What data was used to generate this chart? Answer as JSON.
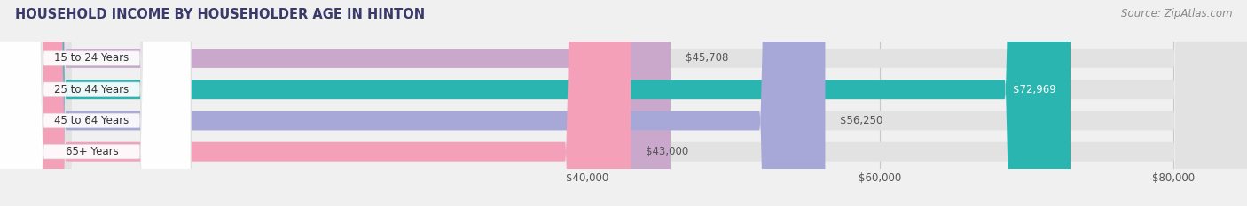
{
  "title": "HOUSEHOLD INCOME BY HOUSEHOLDER AGE IN HINTON",
  "source": "Source: ZipAtlas.com",
  "categories": [
    "15 to 24 Years",
    "25 to 44 Years",
    "45 to 64 Years",
    "65+ Years"
  ],
  "values": [
    45708,
    72969,
    56250,
    43000
  ],
  "bar_colors": [
    "#c9a8cc",
    "#2ab5b0",
    "#a8a8d8",
    "#f4a0b8"
  ],
  "bar_labels": [
    "$45,708",
    "$72,969",
    "$56,250",
    "$43,000"
  ],
  "label_color_dark": "#555555",
  "label_color_light": "#ffffff",
  "label_inside": [
    false,
    true,
    false,
    false
  ],
  "x_min": 0,
  "x_max": 85000,
  "x_ticks": [
    40000,
    60000,
    80000
  ],
  "x_tick_labels": [
    "$40,000",
    "$60,000",
    "$80,000"
  ],
  "background_color": "#f0f0f0",
  "bar_bg_color": "#e2e2e2",
  "bar_height": 0.62,
  "title_fontsize": 10.5,
  "source_fontsize": 8.5,
  "label_fontsize": 8.5,
  "tick_fontsize": 8.5,
  "cat_fontsize": 8.5,
  "cat_pill_color": "#ffffff",
  "cat_pill_alpha": 0.92,
  "grid_color": "#c8c8c8",
  "grid_lw": 0.8
}
